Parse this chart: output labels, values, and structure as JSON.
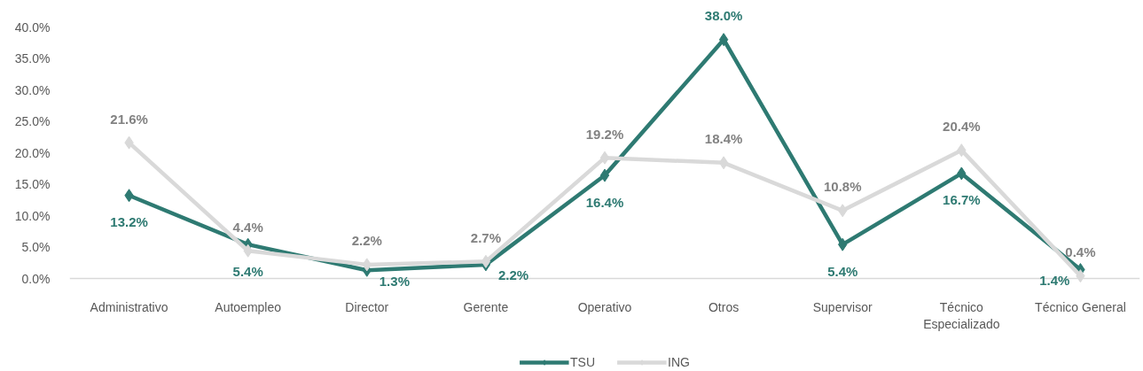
{
  "chart_data": {
    "type": "line",
    "categories": [
      "Administrativo",
      "Autoempleo",
      "Director",
      "Gerente",
      "Operativo",
      "Otros",
      "Supervisor",
      "Técnico Especializado",
      "Técnico General"
    ],
    "series": [
      {
        "name": "TSU",
        "color": "#2e7a72",
        "values": [
          13.2,
          5.4,
          1.3,
          2.2,
          16.4,
          38.0,
          5.4,
          16.7,
          1.4
        ],
        "value_labels": [
          "13.2%",
          "5.4%",
          "1.3%",
          "2.2%",
          "16.4%",
          "38.0%",
          "5.4%",
          "16.7%",
          "1.4%"
        ]
      },
      {
        "name": "ING",
        "color": "#d9d9d9",
        "values": [
          21.6,
          4.4,
          2.2,
          2.7,
          19.2,
          18.4,
          10.8,
          20.4,
          0.4
        ],
        "value_labels": [
          "21.6%",
          "4.4%",
          "2.2%",
          "2.7%",
          "19.2%",
          "18.4%",
          "10.8%",
          "20.4%",
          "0.4%"
        ]
      }
    ],
    "ylim": [
      0,
      40
    ],
    "yticks": [
      {
        "value": 0,
        "label": "0.0%"
      },
      {
        "value": 5,
        "label": "5.0%"
      },
      {
        "value": 10,
        "label": "10.0%"
      },
      {
        "value": 15,
        "label": "15.0%"
      },
      {
        "value": 20,
        "label": "20.0%"
      },
      {
        "value": 25,
        "label": "25.0%"
      },
      {
        "value": 30,
        "label": "30.0%"
      },
      {
        "value": 35,
        "label": "35.0%"
      },
      {
        "value": 40,
        "label": "40.0%"
      }
    ],
    "grid": false,
    "legend": "bottom",
    "marker": "diamond",
    "line_style": "solid"
  }
}
